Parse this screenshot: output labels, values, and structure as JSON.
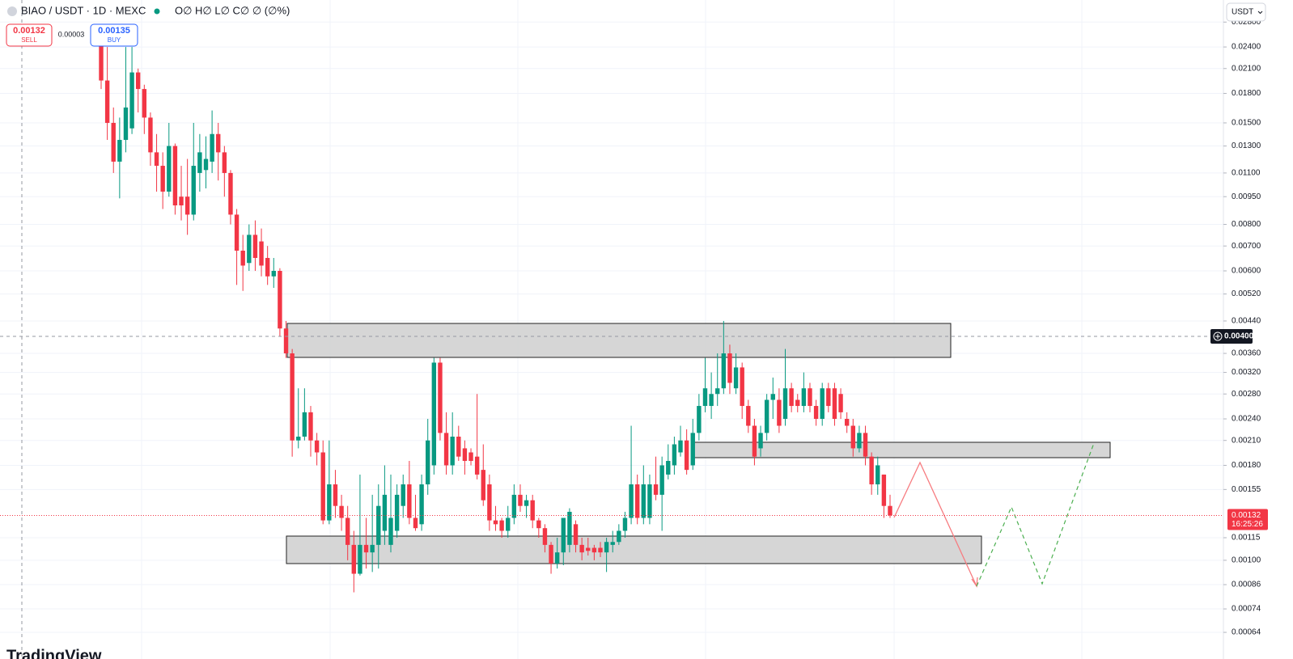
{
  "header": {
    "symbol": "BIAO / USDT · 1D · MEXC",
    "ohlc": "O∅ H∅ L∅ C∅ ∅ (∅%)",
    "sell": {
      "price": 0.00132,
      "label": "SELL"
    },
    "spread": 3e-05,
    "buy": {
      "price": 0.00135,
      "label": "BUY"
    },
    "currency": "USDT"
  },
  "watermark": "TradingView",
  "chart_data": {
    "type": "candlestick",
    "log_scale": true,
    "grid": true,
    "up_color": "#089981",
    "down_color": "#f23645",
    "ylim": [
      0.000585,
      0.0321
    ],
    "yticks": [
      {
        "value": 0.028,
        "label": "0.02800"
      },
      {
        "value": 0.024,
        "label": "0.02400"
      },
      {
        "value": 0.021,
        "label": "0.02100"
      },
      {
        "value": 0.018,
        "label": "0.01800"
      },
      {
        "value": 0.015,
        "label": "0.01500"
      },
      {
        "value": 0.013,
        "label": "0.01300"
      },
      {
        "value": 0.011,
        "label": "0.01100"
      },
      {
        "value": 0.0095,
        "label": "0.00950"
      },
      {
        "value": 0.008,
        "label": "0.00800"
      },
      {
        "value": 0.007,
        "label": "0.00700"
      },
      {
        "value": 0.006,
        "label": "0.00600"
      },
      {
        "value": 0.0052,
        "label": "0.00520"
      },
      {
        "value": 0.0044,
        "label": "0.00440"
      },
      {
        "value": 0.0036,
        "label": "0.00360"
      },
      {
        "value": 0.0032,
        "label": "0.00320"
      },
      {
        "value": 0.0028,
        "label": "0.00280"
      },
      {
        "value": 0.0024,
        "label": "0.00240"
      },
      {
        "value": 0.0021,
        "label": "0.00210"
      },
      {
        "value": 0.0018,
        "label": "0.00180"
      },
      0.00155,
      0.00115,
      {
        "value": 0.001,
        "label": "0.00100"
      },
      0.00086,
      0.00074,
      0.00064
    ],
    "open": [
      0.025,
      0.0195,
      0.015,
      0.0118,
      0.0135,
      0.0145,
      0.0205,
      0.0185,
      0.0155,
      0.0125,
      0.0115,
      0.0098,
      0.013,
      0.0095,
      0.0095,
      0.0085,
      0.011,
      0.0112,
      0.0118,
      0.014,
      0.0125,
      0.011,
      0.0085,
      0.0068,
      0.0063,
      0.0075,
      0.0072,
      0.0065,
      0.0058,
      0.006,
      0.0042,
      0.0036,
      0.0021,
      0.00215,
      0.0025,
      0.0021,
      0.00195,
      0.00128,
      0.0016,
      0.0014,
      0.0013,
      0.0011,
      0.00092,
      0.0011,
      0.00105,
      0.0011,
      0.0012,
      0.0011,
      0.0012,
      0.0014,
      0.0016,
      0.0013,
      0.00125,
      0.0016,
      0.0018,
      0.0034,
      0.0022,
      0.0018,
      0.00215,
      0.002,
      0.00195,
      0.0019,
      0.00175,
      0.0016,
      0.00128,
      0.00128,
      0.0012,
      0.0013,
      0.0015,
      0.0014,
      0.00145,
      0.00128,
      0.00122,
      0.0011,
      0.00098,
      0.00105,
      0.0011,
      0.00125,
      0.0011,
      0.00108,
      0.00108,
      0.00108,
      0.00105,
      0.0011,
      0.00112,
      0.0012,
      0.0013,
      0.0016,
      0.0013,
      0.0013,
      0.0016,
      0.0015,
      0.0017,
      0.0018,
      0.00195,
      0.0021,
      0.0018,
      0.0022,
      0.0026,
      0.0026,
      0.0028,
      0.0029,
      0.0036,
      0.0029,
      0.0033,
      0.0026,
      0.0023,
      0.002,
      0.0022,
      0.0027,
      0.0027,
      0.0024,
      0.0029,
      0.0027,
      0.0026,
      0.0029,
      0.0026,
      0.0024,
      0.0029,
      0.0029,
      0.0028,
      0.0024,
      0.0023,
      0.002,
      0.0022,
      0.0019,
      0.0016,
      0.0017,
      0.0014
    ],
    "high": [
      0.027,
      0.024,
      0.0165,
      0.0155,
      0.024,
      0.024,
      0.021,
      0.019,
      0.016,
      0.014,
      0.0125,
      0.015,
      0.0132,
      0.0115,
      0.012,
      0.015,
      0.014,
      0.0138,
      0.0162,
      0.015,
      0.013,
      0.0112,
      0.0088,
      0.0075,
      0.008,
      0.0082,
      0.0078,
      0.007,
      0.0065,
      0.0061,
      0.0044,
      0.0037,
      0.0029,
      0.0029,
      0.0026,
      0.0022,
      0.0021,
      0.0021,
      0.00175,
      0.0015,
      0.0014,
      0.0012,
      0.0017,
      0.0013,
      0.0015,
      0.0016,
      0.0018,
      0.0017,
      0.0016,
      0.0017,
      0.00185,
      0.0015,
      0.0017,
      0.0024,
      0.0035,
      0.0035,
      0.0025,
      0.0025,
      0.0023,
      0.0021,
      0.002,
      0.0028,
      0.00205,
      0.0017,
      0.0014,
      0.0013,
      0.0014,
      0.0016,
      0.0016,
      0.0015,
      0.0015,
      0.0013,
      0.00125,
      0.00112,
      0.00115,
      0.0013,
      0.00138,
      0.00128,
      0.00115,
      0.00115,
      0.0011,
      0.00112,
      0.00115,
      0.0012,
      0.00125,
      0.00135,
      0.0023,
      0.0017,
      0.0018,
      0.0017,
      0.0019,
      0.0019,
      0.00205,
      0.00215,
      0.0023,
      0.00225,
      0.0024,
      0.0028,
      0.0035,
      0.0032,
      0.0036,
      0.0044,
      0.0038,
      0.0036,
      0.0034,
      0.0027,
      0.0024,
      0.0023,
      0.0028,
      0.0031,
      0.0029,
      0.0037,
      0.003,
      0.0028,
      0.0032,
      0.003,
      0.0027,
      0.003,
      0.003,
      0.003,
      0.0029,
      0.0025,
      0.0024,
      0.0023,
      0.0023,
      0.00195,
      0.0019,
      0.0017,
      0.0015
    ],
    "low": [
      0.0185,
      0.0135,
      0.011,
      0.0094,
      0.0125,
      0.014,
      0.016,
      0.014,
      0.0115,
      0.0098,
      0.0088,
      0.0095,
      0.0085,
      0.0082,
      0.0075,
      0.0082,
      0.0098,
      0.01,
      0.011,
      0.0105,
      0.0095,
      0.008,
      0.0055,
      0.0053,
      0.006,
      0.006,
      0.0058,
      0.0055,
      0.0054,
      0.004,
      0.0035,
      0.0019,
      0.002,
      0.0021,
      0.0019,
      0.0018,
      0.00125,
      0.00125,
      0.0013,
      0.0012,
      0.001,
      0.00082,
      0.00091,
      0.00095,
      0.00093,
      0.00095,
      0.0011,
      0.00105,
      0.00115,
      0.0013,
      0.00125,
      0.0012,
      0.0012,
      0.0015,
      0.0017,
      0.0021,
      0.0017,
      0.0017,
      0.00185,
      0.0017,
      0.0018,
      0.00165,
      0.0014,
      0.0012,
      0.0012,
      0.00115,
      0.00115,
      0.00125,
      0.00135,
      0.0013,
      0.00122,
      0.00115,
      0.00105,
      0.00092,
      0.00095,
      0.00097,
      0.00105,
      0.00105,
      0.001,
      0.00103,
      0.001,
      0.00102,
      0.00093,
      0.00105,
      0.0011,
      0.00115,
      0.00125,
      0.00125,
      0.00125,
      0.00125,
      0.00145,
      0.0012,
      0.00165,
      0.0017,
      0.0019,
      0.0017,
      0.00175,
      0.0021,
      0.0025,
      0.0024,
      0.0026,
      0.0028,
      0.0028,
      0.0028,
      0.0024,
      0.0022,
      0.0018,
      0.0019,
      0.0021,
      0.0024,
      0.0022,
      0.0023,
      0.0025,
      0.0025,
      0.0025,
      0.0025,
      0.0023,
      0.0023,
      0.0025,
      0.0023,
      0.0024,
      0.0022,
      0.0019,
      0.00195,
      0.0018,
      0.0015,
      0.0015,
      0.0013,
      0.0013
    ],
    "close": [
      0.0195,
      0.015,
      0.0118,
      0.0135,
      0.0165,
      0.0205,
      0.0185,
      0.0155,
      0.0125,
      0.0115,
      0.0098,
      0.013,
      0.009,
      0.009,
      0.0085,
      0.0115,
      0.0125,
      0.012,
      0.014,
      0.0125,
      0.011,
      0.0085,
      0.0068,
      0.0062,
      0.0075,
      0.0065,
      0.0062,
      0.0058,
      0.006,
      0.0042,
      0.0036,
      0.0021,
      0.00215,
      0.0025,
      0.0021,
      0.00195,
      0.00128,
      0.0016,
      0.0014,
      0.0013,
      0.0011,
      0.00092,
      0.0011,
      0.00105,
      0.0011,
      0.0014,
      0.0015,
      0.0013,
      0.0015,
      0.0016,
      0.0013,
      0.00122,
      0.0016,
      0.0021,
      0.0034,
      0.0022,
      0.0018,
      0.00215,
      0.0019,
      0.00185,
      0.00185,
      0.0017,
      0.00145,
      0.00128,
      0.00125,
      0.0012,
      0.0013,
      0.0015,
      0.0014,
      0.00145,
      0.00128,
      0.00122,
      0.0011,
      0.00098,
      0.00105,
      0.0013,
      0.00135,
      0.0011,
      0.00105,
      0.00106,
      0.00105,
      0.00105,
      0.00112,
      0.00112,
      0.0012,
      0.0013,
      0.0016,
      0.0013,
      0.0016,
      0.0016,
      0.0015,
      0.0018,
      0.00185,
      0.00205,
      0.0021,
      0.00175,
      0.0022,
      0.0026,
      0.0029,
      0.0028,
      0.0029,
      0.0036,
      0.003,
      0.0033,
      0.0026,
      0.0023,
      0.0019,
      0.0022,
      0.0027,
      0.0028,
      0.0023,
      0.0029,
      0.0026,
      0.0026,
      0.0029,
      0.0026,
      0.0024,
      0.0029,
      0.0026,
      0.0024,
      0.0025,
      0.0023,
      0.002,
      0.0022,
      0.0019,
      0.0016,
      0.0018,
      0.0014,
      0.00132
    ],
    "last_price": {
      "value": 0.00132,
      "label": "0.00132"
    },
    "countdown": "16:25:26",
    "crosshair_price": {
      "value": 0.004,
      "label": "0.00400"
    }
  }
}
